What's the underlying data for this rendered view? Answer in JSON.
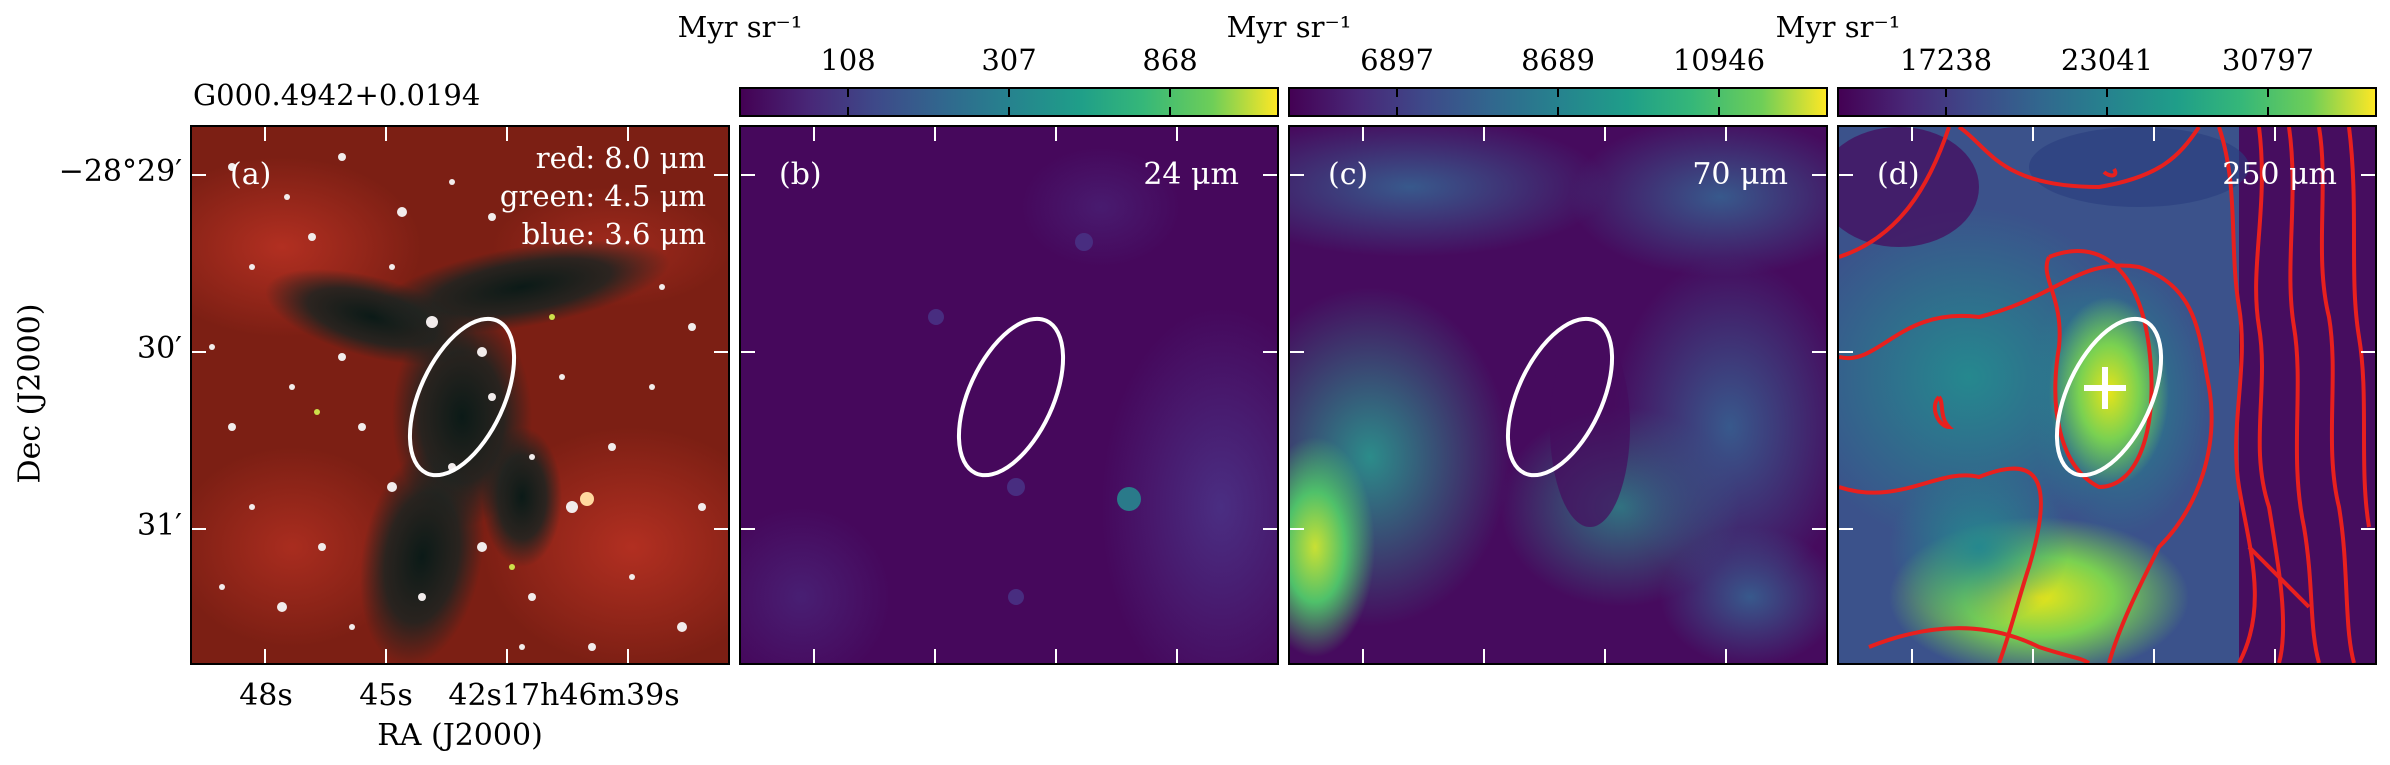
{
  "figure": {
    "source_name": "G000.4942+0.0194",
    "y_axis_label": "Dec (J2000)",
    "x_axis_label": "RA (J2000)",
    "y_ticks": [
      "−28°29′",
      "30′",
      "31′"
    ],
    "x_ticks": [
      "48s",
      "45s",
      "42s17h46m39s"
    ]
  },
  "panels": [
    {
      "id": "a",
      "label": "(a)",
      "rgb_legend": [
        "red: 8.0 μm",
        "green: 4.5 μm",
        "blue: 3.6 μm"
      ]
    },
    {
      "id": "b",
      "label": "(b)",
      "wavelength": "24 μm",
      "colorbar_unit": "Myr sr⁻¹",
      "colorbar_ticks": [
        "108",
        "307",
        "868"
      ]
    },
    {
      "id": "c",
      "label": "(c)",
      "wavelength": "70 μm",
      "colorbar_unit": "Myr sr⁻¹",
      "colorbar_ticks": [
        "6897",
        "8689",
        "10946"
      ]
    },
    {
      "id": "d",
      "label": "(d)",
      "wavelength": "250 μm",
      "colorbar_unit": "Myr sr⁻¹",
      "colorbar_ticks": [
        "17238",
        "23041",
        "30797"
      ]
    }
  ],
  "colors": {
    "viridis_dark": "#440154",
    "viridis_mid": "#21918c",
    "viridis_light": "#fde725",
    "ellipse": "#ffffff",
    "contour": "#e8201e"
  }
}
